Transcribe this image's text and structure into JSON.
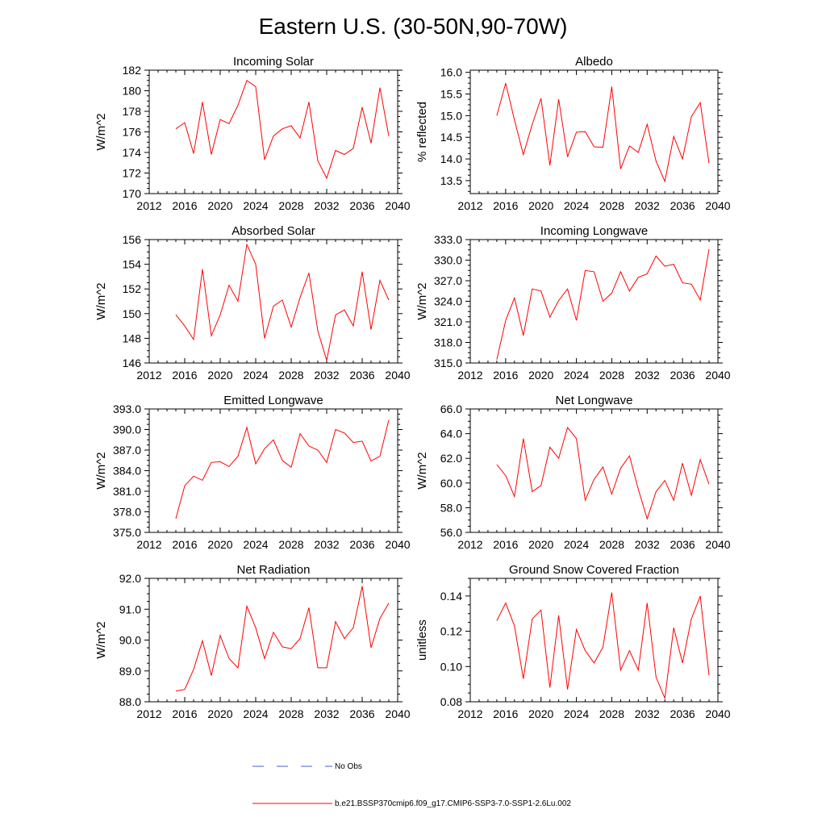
{
  "figure_title": "Eastern U.S. (30-50N,90-70W)",
  "colors": {
    "model": "#ff0000",
    "obs": "#4a5fd0",
    "axis": "#000000"
  },
  "legend": {
    "obs_label": "No Obs",
    "model_label": "b.e21.BSSP370cmip6.f09_g17.CMIP6-SSP3-7.0-SSP1-2.6Lu.002"
  },
  "chart_data": [
    {
      "type": "line",
      "title": "Incoming Solar",
      "ylabel": "W/m^2",
      "xlim": [
        2012,
        2040
      ],
      "ylim": [
        170,
        182
      ],
      "x_ticks": [
        "2012",
        "2016",
        "2020",
        "2024",
        "2028",
        "2032",
        "2036",
        "2040"
      ],
      "y_ticks": [
        "170",
        "172",
        "174",
        "176",
        "178",
        "180",
        "182"
      ],
      "series": [
        {
          "name": "b.e21.BSSP370cmip6.f09_g17.CMIP6-SSP3-7.0-SSP1-2.6Lu.002",
          "x": [
            2015,
            2016,
            2017,
            2018,
            2019,
            2020,
            2021,
            2022,
            2023,
            2024,
            2025,
            2026,
            2027,
            2028,
            2029,
            2030,
            2031,
            2032,
            2033,
            2034,
            2035,
            2036,
            2037,
            2038,
            2039
          ],
          "values": [
            176.3,
            176.9,
            173.9,
            178.9,
            173.8,
            177.2,
            176.8,
            178.6,
            181.0,
            180.4,
            173.3,
            175.6,
            176.3,
            176.6,
            175.4,
            178.9,
            173.2,
            171.5,
            174.2,
            173.8,
            174.4,
            178.4,
            174.9,
            180.3,
            175.6
          ]
        }
      ]
    },
    {
      "type": "line",
      "title": "Albedo",
      "ylabel": "% reflected",
      "xlim": [
        2012,
        2040
      ],
      "ylim": [
        13.2,
        16.05
      ],
      "x_ticks": [
        "2012",
        "2016",
        "2020",
        "2024",
        "2028",
        "2032",
        "2036",
        "2040"
      ],
      "y_ticks": [
        "13.5",
        "14.0",
        "14.5",
        "15.0",
        "15.5",
        "16.0"
      ],
      "series": [
        {
          "name": "b.e21.BSSP370cmip6.f09_g17.CMIP6-SSP3-7.0-SSP1-2.6Lu.002",
          "x": [
            2015,
            2016,
            2017,
            2018,
            2019,
            2020,
            2021,
            2022,
            2023,
            2024,
            2025,
            2026,
            2027,
            2028,
            2029,
            2030,
            2031,
            2032,
            2033,
            2034,
            2035,
            2036,
            2037,
            2038,
            2039
          ],
          "values": [
            15.0,
            15.75,
            14.9,
            14.1,
            14.8,
            15.4,
            13.85,
            15.38,
            14.05,
            14.62,
            14.63,
            14.28,
            14.27,
            15.67,
            13.77,
            14.3,
            14.15,
            14.8,
            13.95,
            13.48,
            14.52,
            14.0,
            14.98,
            15.3,
            13.9
          ]
        }
      ]
    },
    {
      "type": "line",
      "title": "Absorbed Solar",
      "ylabel": "W/m^2",
      "xlim": [
        2012,
        2040
      ],
      "ylim": [
        146,
        156
      ],
      "x_ticks": [
        "2012",
        "2016",
        "2020",
        "2024",
        "2028",
        "2032",
        "2036",
        "2040"
      ],
      "y_ticks": [
        "146",
        "148",
        "150",
        "152",
        "154",
        "156"
      ],
      "series": [
        {
          "name": "b.e21.BSSP370cmip6.f09_g17.CMIP6-SSP3-7.0-SSP1-2.6Lu.002",
          "x": [
            2015,
            2016,
            2017,
            2018,
            2019,
            2020,
            2021,
            2022,
            2023,
            2024,
            2025,
            2026,
            2027,
            2028,
            2029,
            2030,
            2031,
            2032,
            2033,
            2034,
            2035,
            2036,
            2037,
            2038,
            2039
          ],
          "values": [
            149.9,
            149.0,
            147.9,
            153.6,
            148.2,
            149.9,
            152.3,
            151.0,
            155.6,
            154.0,
            148.0,
            150.6,
            151.1,
            148.9,
            151.3,
            153.3,
            148.6,
            146.2,
            149.9,
            150.3,
            149.0,
            153.4,
            148.7,
            152.7,
            151.1
          ]
        }
      ]
    },
    {
      "type": "line",
      "title": "Incoming Longwave",
      "ylabel": "W/m^2",
      "xlim": [
        2012,
        2040
      ],
      "ylim": [
        315,
        333
      ],
      "x_ticks": [
        "2012",
        "2016",
        "2020",
        "2024",
        "2028",
        "2032",
        "2036",
        "2040"
      ],
      "y_ticks": [
        "315.0",
        "318.0",
        "321.0",
        "324.0",
        "327.0",
        "330.0",
        "333.0"
      ],
      "series": [
        {
          "name": "b.e21.BSSP370cmip6.f09_g17.CMIP6-SSP3-7.0-SSP1-2.6Lu.002",
          "x": [
            2015,
            2016,
            2017,
            2018,
            2019,
            2020,
            2021,
            2022,
            2023,
            2024,
            2025,
            2026,
            2027,
            2028,
            2029,
            2030,
            2031,
            2032,
            2033,
            2034,
            2035,
            2036,
            2037,
            2038,
            2039
          ],
          "values": [
            315.5,
            321.2,
            324.5,
            319.0,
            325.8,
            325.5,
            321.7,
            324.1,
            325.8,
            321.2,
            328.5,
            328.3,
            324.0,
            325.2,
            328.3,
            325.5,
            327.5,
            328.0,
            330.6,
            329.1,
            329.4,
            326.7,
            326.5,
            324.2,
            331.6
          ]
        }
      ]
    },
    {
      "type": "line",
      "title": "Emitted Longwave",
      "ylabel": "W/m^2",
      "xlim": [
        2012,
        2040
      ],
      "ylim": [
        375,
        393
      ],
      "x_ticks": [
        "2012",
        "2016",
        "2020",
        "2024",
        "2028",
        "2032",
        "2036",
        "2040"
      ],
      "y_ticks": [
        "375.0",
        "378.0",
        "381.0",
        "384.0",
        "387.0",
        "390.0",
        "393.0"
      ],
      "series": [
        {
          "name": "b.e21.BSSP370cmip6.f09_g17.CMIP6-SSP3-7.0-SSP1-2.6Lu.002",
          "x": [
            2015,
            2016,
            2017,
            2018,
            2019,
            2020,
            2021,
            2022,
            2023,
            2024,
            2025,
            2026,
            2027,
            2028,
            2029,
            2030,
            2031,
            2032,
            2033,
            2034,
            2035,
            2036,
            2037,
            2038,
            2039
          ],
          "values": [
            377.0,
            381.8,
            383.2,
            382.6,
            385.2,
            385.3,
            384.6,
            386.1,
            390.3,
            385.0,
            387.2,
            388.5,
            385.5,
            384.5,
            389.4,
            387.6,
            387.0,
            385.2,
            390.0,
            389.5,
            388.1,
            388.3,
            385.4,
            386.1,
            391.4
          ]
        }
      ]
    },
    {
      "type": "line",
      "title": "Net Longwave",
      "ylabel": "W/m^2",
      "xlim": [
        2012,
        2040
      ],
      "ylim": [
        56,
        66
      ],
      "x_ticks": [
        "2012",
        "2016",
        "2020",
        "2024",
        "2028",
        "2032",
        "2036",
        "2040"
      ],
      "y_ticks": [
        "56.0",
        "58.0",
        "60.0",
        "62.0",
        "64.0",
        "66.0"
      ],
      "series": [
        {
          "name": "b.e21.BSSP370cmip6.f09_g17.CMIP6-SSP3-7.0-SSP1-2.6Lu.002",
          "x": [
            2015,
            2016,
            2017,
            2018,
            2019,
            2020,
            2021,
            2022,
            2023,
            2024,
            2025,
            2026,
            2027,
            2028,
            2029,
            2030,
            2031,
            2032,
            2033,
            2034,
            2035,
            2036,
            2037,
            2038,
            2039
          ],
          "values": [
            61.5,
            60.6,
            58.9,
            63.6,
            59.3,
            59.8,
            62.9,
            62.0,
            64.5,
            63.6,
            58.6,
            60.3,
            61.3,
            59.1,
            61.2,
            62.2,
            59.5,
            57.1,
            59.3,
            60.2,
            58.6,
            61.6,
            59.0,
            61.9,
            59.9
          ]
        }
      ]
    },
    {
      "type": "line",
      "title": "Net Radiation",
      "ylabel": "W/m^2",
      "xlim": [
        2012,
        2040
      ],
      "ylim": [
        88,
        92
      ],
      "x_ticks": [
        "2012",
        "2016",
        "2020",
        "2024",
        "2028",
        "2032",
        "2036",
        "2040"
      ],
      "y_ticks": [
        "88.0",
        "89.0",
        "90.0",
        "91.0",
        "92.0"
      ],
      "series": [
        {
          "name": "b.e21.BSSP370cmip6.f09_g17.CMIP6-SSP3-7.0-SSP1-2.6Lu.002",
          "x": [
            2015,
            2016,
            2017,
            2018,
            2019,
            2020,
            2021,
            2022,
            2023,
            2024,
            2025,
            2026,
            2027,
            2028,
            2029,
            2030,
            2031,
            2032,
            2033,
            2034,
            2035,
            2036,
            2037,
            2038,
            2039
          ],
          "values": [
            88.35,
            88.4,
            89.05,
            89.98,
            88.85,
            90.15,
            89.4,
            89.1,
            91.1,
            90.4,
            89.4,
            90.25,
            89.78,
            89.72,
            90.05,
            91.05,
            89.1,
            89.1,
            90.6,
            90.05,
            90.4,
            91.75,
            89.75,
            90.7,
            91.2
          ]
        }
      ]
    },
    {
      "type": "line",
      "title": "Ground Snow Covered Fraction",
      "ylabel": "unitless",
      "xlim": [
        2012,
        2040
      ],
      "ylim": [
        0.08,
        0.15
      ],
      "x_ticks": [
        "2012",
        "2016",
        "2020",
        "2024",
        "2028",
        "2032",
        "2036",
        "2040"
      ],
      "y_ticks": [
        "0.08",
        "0.10",
        "0.12",
        "0.14"
      ],
      "series": [
        {
          "name": "b.e21.BSSP370cmip6.f09_g17.CMIP6-SSP3-7.0-SSP1-2.6Lu.002",
          "x": [
            2015,
            2016,
            2017,
            2018,
            2019,
            2020,
            2021,
            2022,
            2023,
            2024,
            2025,
            2026,
            2027,
            2028,
            2029,
            2030,
            2031,
            2032,
            2033,
            2034,
            2035,
            2036,
            2037,
            2038,
            2039
          ],
          "values": [
            0.126,
            0.136,
            0.123,
            0.093,
            0.127,
            0.132,
            0.088,
            0.129,
            0.087,
            0.121,
            0.109,
            0.102,
            0.111,
            0.142,
            0.098,
            0.109,
            0.098,
            0.136,
            0.094,
            0.082,
            0.122,
            0.102,
            0.127,
            0.14,
            0.095
          ]
        }
      ]
    }
  ]
}
